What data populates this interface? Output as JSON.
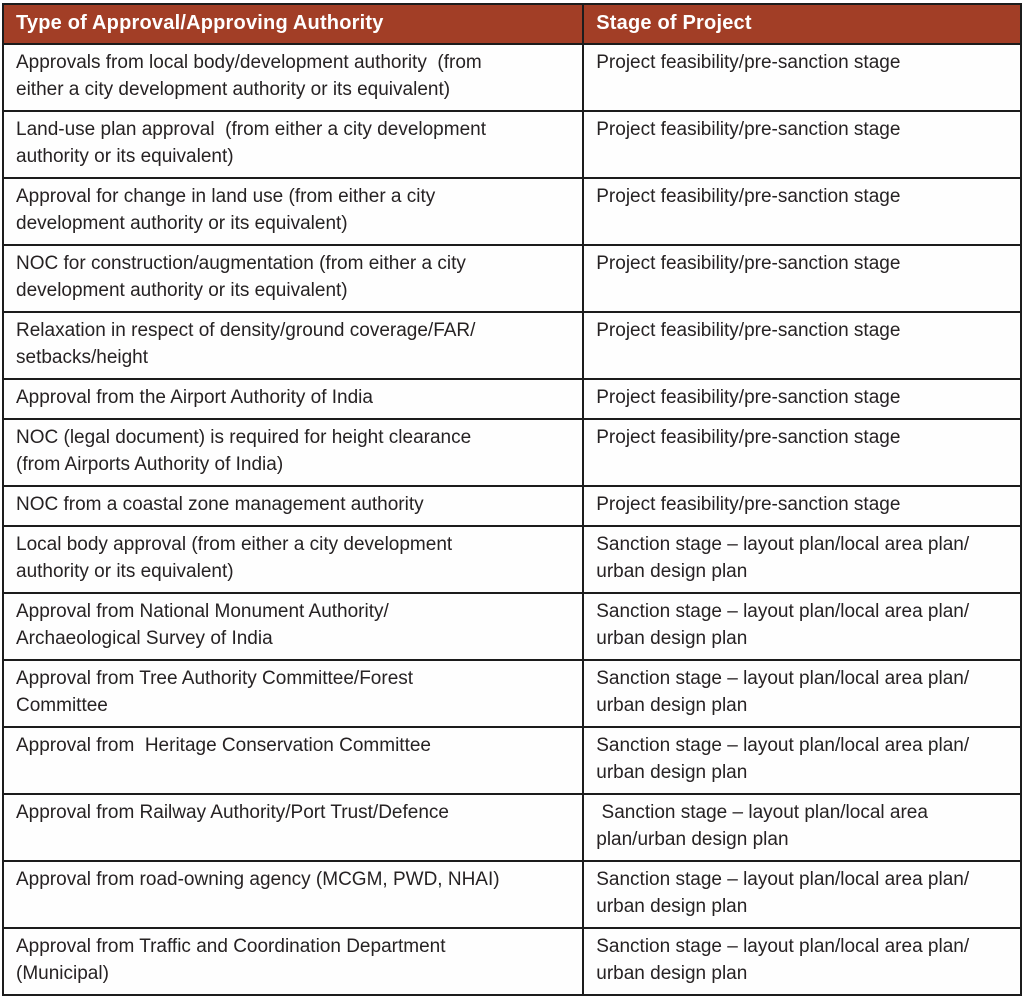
{
  "table": {
    "title_semantic": "Approvals and project stages table",
    "header_bg": "#A23E26",
    "header_text_color": "#FFFFFF",
    "border_color": "#1C1C1C",
    "body_text_color": "#262223",
    "columns": [
      {
        "label": "Type of Approval/Approving Authority"
      },
      {
        "label": "Stage of Project"
      }
    ],
    "rows": [
      {
        "approval": "Approvals from local body/development authority  (from\neither a city development authority or its equivalent)",
        "stage": "Project feasibility/pre-sanction stage"
      },
      {
        "approval": "Land-use plan approval  (from either a city development\nauthority or its equivalent)",
        "stage": "Project feasibility/pre-sanction stage"
      },
      {
        "approval": "Approval for change in land use (from either a city\ndevelopment authority or its equivalent)",
        "stage": "Project feasibility/pre-sanction stage"
      },
      {
        "approval": "NOC for construction/augmentation (from either a city\ndevelopment authority or its equivalent)",
        "stage": "Project feasibility/pre-sanction stage"
      },
      {
        "approval": "Relaxation in respect of density/ground coverage/FAR/\nsetbacks/height",
        "stage": "Project feasibility/pre-sanction stage"
      },
      {
        "approval": "Approval from the Airport Authority of India",
        "stage": "Project feasibility/pre-sanction stage"
      },
      {
        "approval": "NOC (legal document) is required for height clearance\n(from Airports Authority of India)",
        "stage": "Project feasibility/pre-sanction stage"
      },
      {
        "approval": "NOC from a coastal zone management authority",
        "stage": "Project feasibility/pre-sanction stage"
      },
      {
        "approval": "Local body approval (from either a city development\nauthority or its equivalent)",
        "stage": "Sanction stage – layout plan/local area plan/\nurban design plan"
      },
      {
        "approval": "Approval from National Monument Authority/\nArchaeological Survey of India",
        "stage": "Sanction stage – layout plan/local area plan/\nurban design plan"
      },
      {
        "approval": "Approval from Tree Authority Committee/Forest\nCommittee",
        "stage": "Sanction stage – layout plan/local area plan/\nurban design plan"
      },
      {
        "approval": "Approval from  Heritage Conservation Committee",
        "stage": "Sanction stage – layout plan/local area plan/\nurban design plan"
      },
      {
        "approval": "Approval from Railway Authority/Port Trust/Defence",
        "stage": " Sanction stage – layout plan/local area\nplan/urban design plan"
      },
      {
        "approval": "Approval from road-owning agency (MCGM, PWD, NHAI)",
        "stage": "Sanction stage – layout plan/local area plan/\nurban design plan"
      },
      {
        "approval": "Approval from Traffic and Coordination Department\n(Municipal)",
        "stage": "Sanction stage – layout plan/local area plan/\nurban design plan"
      }
    ]
  }
}
